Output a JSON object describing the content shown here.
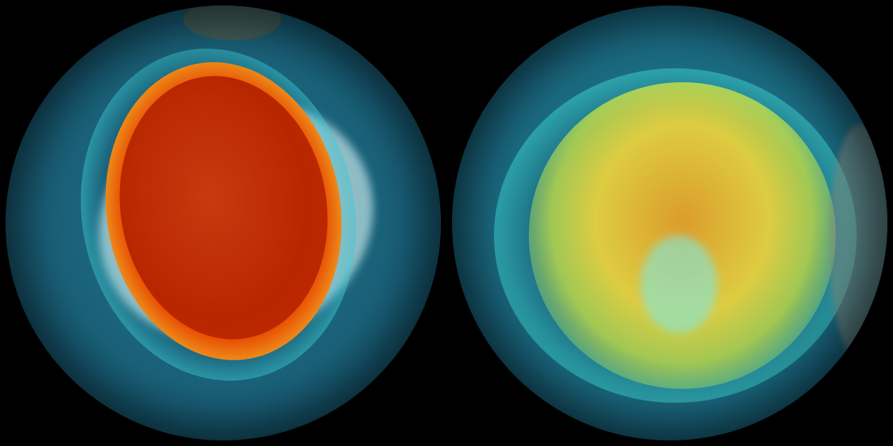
{
  "image": {
    "description_visible_text": [],
    "globes": [
      {
        "id": "left",
        "hole_colors": [
          "#b82600",
          "#e84a00",
          "#f5e23a",
          "#2ec3c8"
        ]
      },
      {
        "id": "right",
        "hole_colors": [
          "#f0a020",
          "#f2d63a",
          "#d9ee40",
          "#38c6c6"
        ]
      }
    ],
    "background": "#000000"
  }
}
